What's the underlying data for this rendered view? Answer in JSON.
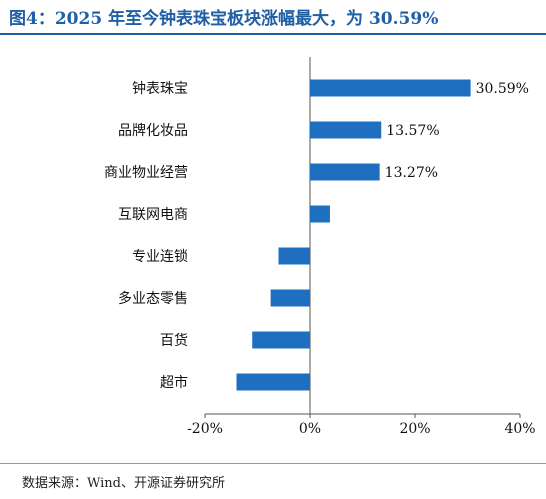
{
  "figure": {
    "title": "图4：2025 年至今钟表珠宝板块涨幅最大，为 30.59%",
    "source": "数据来源：Wind、开源证券研究所"
  },
  "chart_data": {
    "type": "bar",
    "orientation": "horizontal",
    "categories": [
      "钟表珠宝",
      "品牌化妆品",
      "商业物业经营",
      "互联网电商",
      "专业连锁",
      "多业态零售",
      "百货",
      "超市"
    ],
    "values": [
      30.59,
      13.57,
      13.27,
      3.8,
      -6.0,
      -7.5,
      -11.0,
      -14.0
    ],
    "data_labels": [
      "30.59%",
      "13.57%",
      "13.27%",
      "",
      "",
      "",
      "",
      ""
    ],
    "xlim": [
      -20,
      40
    ],
    "xticks": [
      -20,
      0,
      20,
      40
    ],
    "xtick_labels": [
      "-20%",
      "0%",
      "20%",
      "40%"
    ],
    "grid": false,
    "bar_color": "#1f6fc0"
  }
}
